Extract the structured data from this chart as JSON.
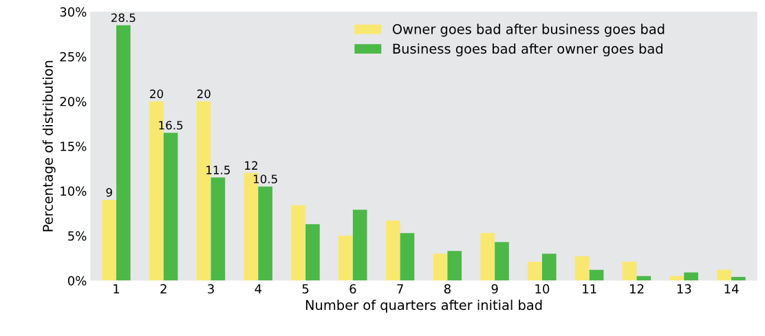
{
  "chart_data": {
    "type": "bar",
    "xlabel": "Number of quarters after initial bad",
    "ylabel": "Percentage of distribution",
    "categories": [
      "1",
      "2",
      "3",
      "4",
      "5",
      "6",
      "7",
      "8",
      "9",
      "10",
      "11",
      "12",
      "13",
      "14"
    ],
    "series": [
      {
        "name": "Owner goes bad after business goes bad",
        "color": "#f9e86f",
        "values": [
          9,
          20,
          20,
          12,
          8.4,
          5.0,
          6.7,
          3.0,
          5.3,
          2.1,
          2.7,
          2.1,
          0.5,
          1.2
        ],
        "value_labels": [
          "9",
          "20",
          "20",
          "12",
          null,
          null,
          null,
          null,
          null,
          null,
          null,
          null,
          null,
          null
        ]
      },
      {
        "name": "Business goes bad after owner goes bad",
        "color": "#4cb848",
        "values": [
          28.5,
          16.5,
          11.5,
          10.5,
          6.3,
          7.9,
          5.3,
          3.3,
          4.3,
          3.0,
          1.2,
          0.5,
          0.9,
          0.4
        ],
        "value_labels": [
          "28.5",
          "16.5",
          "11.5",
          "10.5",
          null,
          null,
          null,
          null,
          null,
          null,
          null,
          null,
          null,
          null
        ]
      }
    ],
    "ylim": [
      0,
      30
    ],
    "yticks": [
      {
        "value": 0,
        "label": "0%"
      },
      {
        "value": 5,
        "label": "5%"
      },
      {
        "value": 10,
        "label": "10%"
      },
      {
        "value": 15,
        "label": "15%"
      },
      {
        "value": 20,
        "label": "20%"
      },
      {
        "value": 25,
        "label": "25%"
      },
      {
        "value": 30,
        "label": "30%"
      }
    ],
    "grid": false,
    "legend": "top right"
  }
}
